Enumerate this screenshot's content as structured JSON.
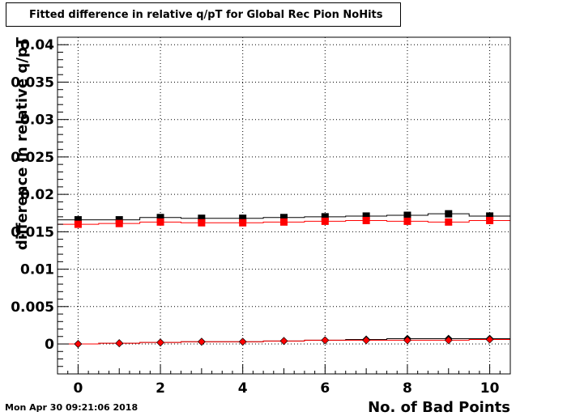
{
  "title": "Fitted difference in relative q/pT for Global Rec Pion NoHits",
  "timestamp": "Mon Apr 30 09:21:06 2018",
  "chart_data": {
    "type": "scatter",
    "title": "Fitted difference in relative q/pT for Global Rec Pion NoHits",
    "xlabel": "No. of Bad Points",
    "ylabel": "difference in relative q/pT",
    "xlim": [
      -0.5,
      10.5
    ],
    "ylim": [
      -0.004,
      0.041
    ],
    "grid": true,
    "x": [
      0,
      1,
      2,
      3,
      4,
      5,
      6,
      7,
      8,
      9,
      10
    ],
    "x_ticks": [
      "0",
      "2",
      "4",
      "6",
      "8",
      "10"
    ],
    "y_ticks": [
      "0",
      "0.005",
      "0.01",
      "0.015",
      "0.02",
      "0.025",
      "0.03",
      "0.035",
      "0.04"
    ],
    "series": [
      {
        "marker": "square",
        "color": "#000000",
        "values": [
          0.0166,
          0.0166,
          0.0169,
          0.0168,
          0.0168,
          0.0169,
          0.017,
          0.0171,
          0.0172,
          0.0174,
          0.0171
        ]
      },
      {
        "marker": "square",
        "color": "#ff0000",
        "values": [
          0.016,
          0.0161,
          0.0163,
          0.0162,
          0.0162,
          0.0163,
          0.0164,
          0.0165,
          0.0164,
          0.0163,
          0.0165
        ]
      },
      {
        "marker": "diamond",
        "color": "#000000",
        "values": [
          0.0,
          0.0001,
          0.0002,
          0.0003,
          0.0003,
          0.0004,
          0.0005,
          0.0006,
          0.0007,
          0.0007,
          0.0007
        ]
      },
      {
        "marker": "diamond",
        "color": "#ff0000",
        "values": [
          0.0,
          0.0001,
          0.0002,
          0.0003,
          0.0003,
          0.0004,
          0.0005,
          0.0005,
          0.0005,
          0.0005,
          0.0006
        ]
      }
    ]
  }
}
